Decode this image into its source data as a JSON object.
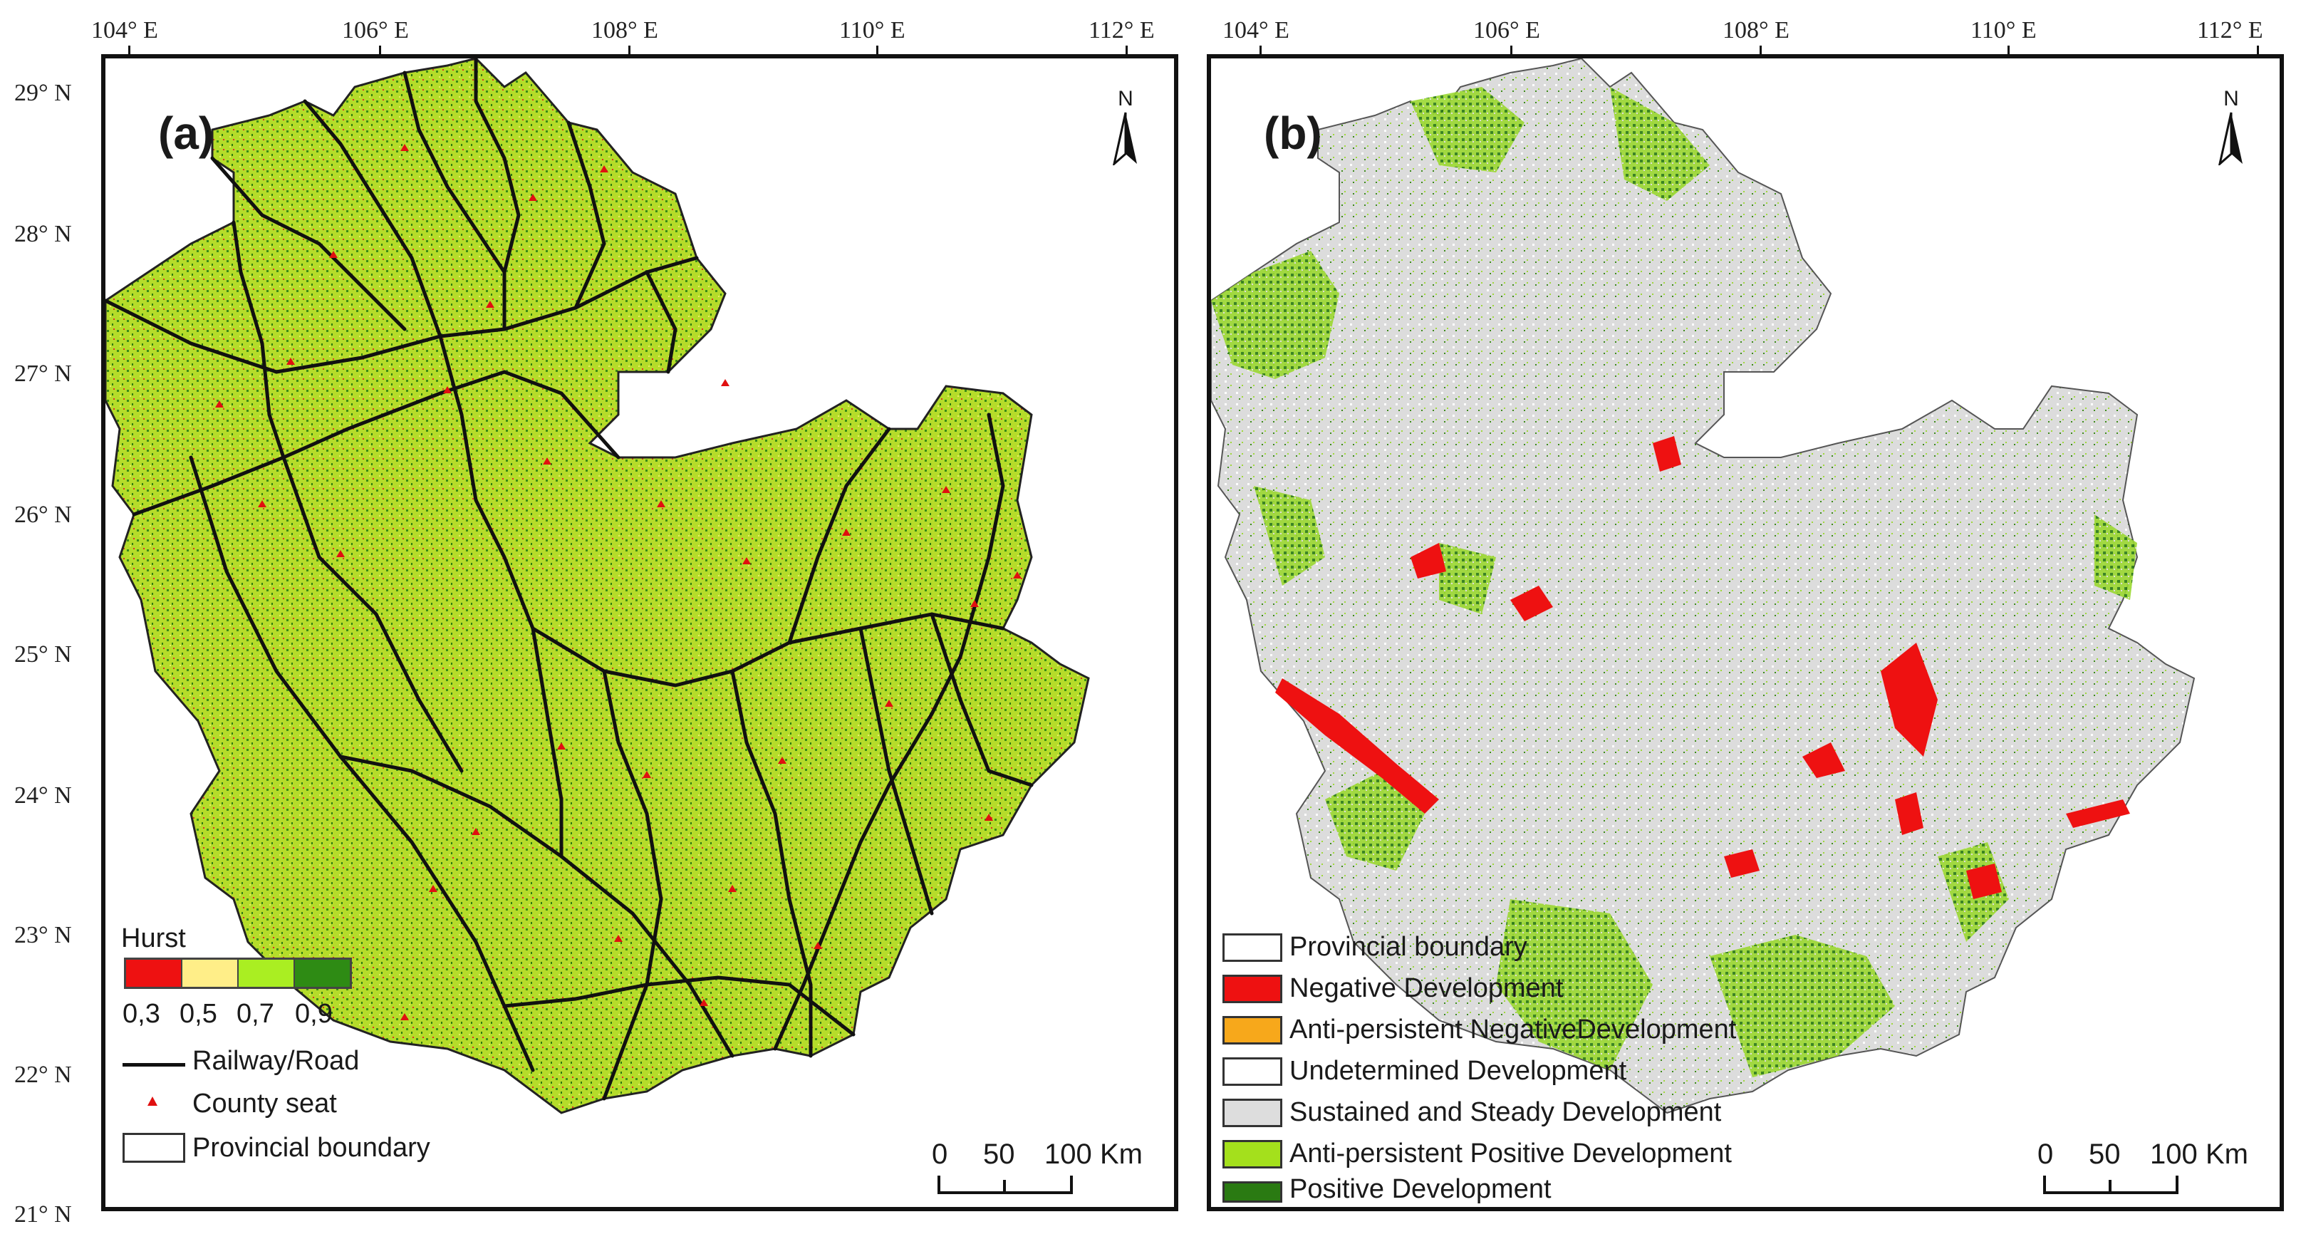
{
  "axes": {
    "lon_labels": [
      "104° E",
      "106° E",
      "108° E",
      "110° E",
      "112° E"
    ],
    "lat_labels": [
      "29° N",
      "28° N",
      "27° N",
      "26° N",
      "25° N",
      "24° N",
      "23° N",
      "22° N",
      "21° N"
    ]
  },
  "panel_a": {
    "letter": "(a)",
    "north": "N",
    "legend": {
      "title": "Hurst",
      "ramp_colors": [
        "#ee1111",
        "#ffee88",
        "#aaee22",
        "#2e8b14"
      ],
      "ramp_labels": [
        "0,3",
        "0,5",
        "0,7",
        "0,9"
      ],
      "line_label": "Railway/Road",
      "point_label": "County seat",
      "boundary_label": "Provincial boundary"
    },
    "scale": {
      "labels": [
        "0",
        "50",
        "100"
      ],
      "unit": "Km"
    },
    "fill_color": "#b5dc2a"
  },
  "panel_b": {
    "letter": "(b)",
    "north": "N",
    "legend": {
      "items": [
        {
          "label": "Provincial boundary",
          "color": "#ffffff"
        },
        {
          "label": "Negative Development",
          "color": "#ee1111"
        },
        {
          "label": "Anti-persistent NegativeDevelopment",
          "color": "#f7a81b"
        },
        {
          "label": "Undetermined Development",
          "color": "#ffffff"
        },
        {
          "label": "Sustained and Steady Development",
          "color": "#dddddd"
        },
        {
          "label": "Anti-persistent Positive Development",
          "color": "#a4e01c"
        },
        {
          "label": "Positive Development",
          "color": "#2a7a12"
        }
      ]
    },
    "scale": {
      "labels": [
        "0",
        "50",
        "100"
      ],
      "unit": "Km"
    },
    "fill_color": "#dcdcdc"
  }
}
